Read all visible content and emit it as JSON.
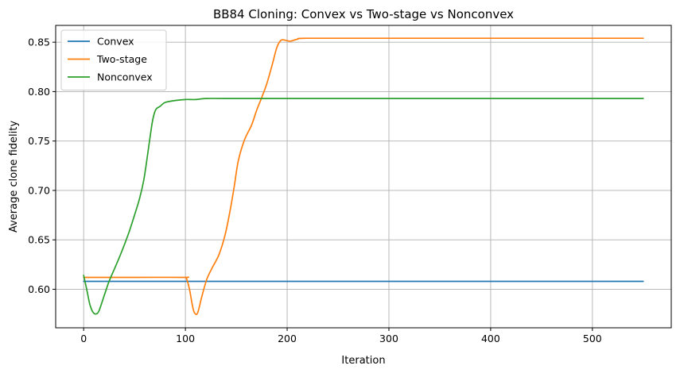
{
  "chart_data": {
    "type": "line",
    "title": "BB84 Cloning: Convex vs Two-stage vs Nonconvex",
    "xlabel": "Iteration",
    "ylabel": "Average clone fidelity",
    "xlim": [
      -27.5,
      577.5
    ],
    "ylim": [
      0.561,
      0.867
    ],
    "xticks": [
      0,
      100,
      200,
      300,
      400,
      500
    ],
    "yticks": [
      0.6,
      0.65,
      0.7,
      0.75,
      0.8,
      0.85
    ],
    "xtick_labels": [
      "0",
      "100",
      "200",
      "300",
      "400",
      "500"
    ],
    "ytick_labels": [
      "0.60",
      "0.65",
      "0.70",
      "0.75",
      "0.80",
      "0.85"
    ],
    "grid": true,
    "legend": "top-left",
    "series": [
      {
        "name": "Convex",
        "color": "#1f77b4",
        "points": [
          [
            0,
            0.608
          ],
          [
            550,
            0.608
          ]
        ]
      },
      {
        "name": "Two-stage",
        "color": "#ff7f0e",
        "points": [
          [
            0,
            0.612
          ],
          [
            50,
            0.612
          ],
          [
            99,
            0.612
          ],
          [
            101,
            0.611
          ],
          [
            104,
            0.6
          ],
          [
            107,
            0.583
          ],
          [
            109,
            0.576
          ],
          [
            112,
            0.576
          ],
          [
            116,
            0.592
          ],
          [
            121,
            0.61
          ],
          [
            127,
            0.623
          ],
          [
            133,
            0.635
          ],
          [
            139,
            0.655
          ],
          [
            144,
            0.68
          ],
          [
            148,
            0.704
          ],
          [
            152,
            0.73
          ],
          [
            158,
            0.751
          ],
          [
            165,
            0.766
          ],
          [
            170,
            0.781
          ],
          [
            175,
            0.794
          ],
          [
            180,
            0.808
          ],
          [
            185,
            0.826
          ],
          [
            190,
            0.845
          ],
          [
            194,
            0.852
          ],
          [
            198,
            0.852
          ],
          [
            203,
            0.851
          ],
          [
            210,
            0.853
          ],
          [
            220,
            0.854
          ],
          [
            300,
            0.854
          ],
          [
            400,
            0.854
          ],
          [
            550,
            0.854
          ]
        ]
      },
      {
        "name": "Nonconvex",
        "color": "#2ca02c",
        "points": [
          [
            0,
            0.614
          ],
          [
            3,
            0.6
          ],
          [
            6,
            0.585
          ],
          [
            9,
            0.577
          ],
          [
            12,
            0.575
          ],
          [
            15,
            0.578
          ],
          [
            20,
            0.593
          ],
          [
            25,
            0.608
          ],
          [
            30,
            0.62
          ],
          [
            35,
            0.632
          ],
          [
            40,
            0.645
          ],
          [
            45,
            0.659
          ],
          [
            50,
            0.675
          ],
          [
            55,
            0.692
          ],
          [
            59,
            0.71
          ],
          [
            62,
            0.73
          ],
          [
            65,
            0.752
          ],
          [
            68,
            0.772
          ],
          [
            71,
            0.782
          ],
          [
            75,
            0.785
          ],
          [
            80,
            0.789
          ],
          [
            90,
            0.791
          ],
          [
            100,
            0.792
          ],
          [
            110,
            0.792
          ],
          [
            120,
            0.793
          ],
          [
            140,
            0.793
          ],
          [
            200,
            0.793
          ],
          [
            300,
            0.793
          ],
          [
            550,
            0.793
          ]
        ]
      }
    ]
  }
}
